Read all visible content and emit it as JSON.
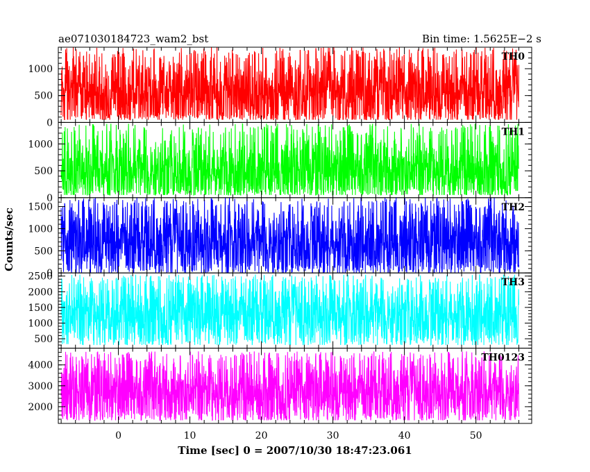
{
  "title_left": "ae071030184723_wam2_bst",
  "title_right": "Bin time: 1.5625E−2 s",
  "chart_data": {
    "type": "line",
    "xlabel": "Time [sec] 0 = 2007/10/30 18:47:23.061",
    "ylabel": "Counts/sec",
    "xlim": [
      -8.4,
      57.8
    ],
    "x_ticks": [
      0,
      10,
      20,
      30,
      40,
      50
    ],
    "x_tick_labels": [
      "0",
      "10",
      "20",
      "30",
      "40",
      "50"
    ],
    "data_x_range": [
      -8,
      56
    ],
    "bin_time": 0.015625,
    "grid": false,
    "panels": [
      {
        "label": "TH0",
        "color": "#ff0000",
        "ylim": [
          0,
          1400
        ],
        "y_ticks": [
          0,
          500,
          1000
        ],
        "y_tick_labels": [
          "0",
          "500",
          "1000"
        ],
        "mean": 550,
        "spread_min": 50,
        "spread_max": 1400
      },
      {
        "label": "TH1",
        "color": "#00ff00",
        "ylim": [
          0,
          1400
        ],
        "y_ticks": [
          0,
          500,
          1000
        ],
        "y_tick_labels": [
          "0",
          "500",
          "1000"
        ],
        "mean": 520,
        "spread_min": 50,
        "spread_max": 1380
      },
      {
        "label": "TH2",
        "color": "#0000ff",
        "ylim": [
          0,
          1700
        ],
        "y_ticks": [
          0,
          500,
          1000,
          1500
        ],
        "y_tick_labels": [
          "0",
          "500",
          "1000",
          "1500"
        ],
        "mean": 700,
        "spread_min": 0,
        "spread_max": 1700
      },
      {
        "label": "TH3",
        "color": "#00ffff",
        "ylim": [
          200,
          2600
        ],
        "y_ticks": [
          500,
          1000,
          1500,
          2000,
          2500
        ],
        "y_tick_labels": [
          "500",
          "1000",
          "1500",
          "2000",
          "2500"
        ],
        "mean": 1300,
        "spread_min": 300,
        "spread_max": 2550
      },
      {
        "label": "TH0123",
        "color": "#ff00ff",
        "ylim": [
          1200,
          4800
        ],
        "y_ticks": [
          2000,
          3000,
          4000
        ],
        "y_tick_labels": [
          "2000",
          "3000",
          "4000"
        ],
        "mean": 2700,
        "spread_min": 1350,
        "spread_max": 4650
      }
    ]
  }
}
